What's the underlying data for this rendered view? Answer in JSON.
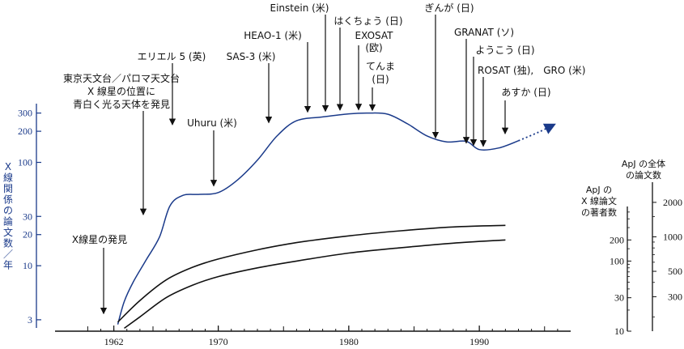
{
  "chart_data": {
    "type": "line",
    "xlim": [
      1957,
      1997
    ],
    "x_ticks": [
      1962,
      1970,
      1980,
      1990
    ],
    "x_tick_labels": [
      "1962",
      "1970",
      "1980",
      "1990"
    ],
    "left_axis": {
      "label": "X線関係の論文数／年",
      "scale": "log",
      "ylim": [
        2.5,
        370
      ],
      "ticks": [
        3,
        10,
        20,
        30,
        100,
        200,
        300
      ],
      "color": "#1a3a8a"
    },
    "right_axis_inner": {
      "label_lines": [
        "ApJ の",
        "X 線論文",
        "の著者数"
      ],
      "scale": "log",
      "ylim": [
        10,
        600
      ],
      "ticks": [
        10,
        30,
        100,
        200
      ]
    },
    "right_axis_outer": {
      "label_lines": [
        "ApJ の全体",
        "の論文数"
      ],
      "scale": "log",
      "ylim": [
        150,
        3000
      ],
      "ticks": [
        300,
        500,
        1000,
        2000
      ]
    },
    "series": [
      {
        "axis": "left",
        "color": "#1a3a8a",
        "x": [
          1962.3,
          1962.8,
          1963.5,
          1964.5,
          1965.5,
          1966.3,
          1967.3,
          1968.5,
          1970,
          1971.5,
          1973,
          1974.5,
          1976,
          1978,
          1980,
          1981.5,
          1983,
          1984.5,
          1986,
          1987.5,
          1989,
          1990,
          1991.5,
          1993,
          1994.5,
          1995.8
        ],
        "y": [
          2.7,
          4.5,
          7,
          11.5,
          19,
          38,
          48,
          49,
          51,
          68,
          105,
          180,
          253,
          275,
          295,
          300,
          292,
          236,
          180,
          158,
          160,
          133,
          138,
          162,
          195,
          234
        ]
      },
      {
        "axis": "right_outer",
        "color": "#111111",
        "x": [
          1962.3,
          1964,
          1966,
          1968,
          1970,
          1973,
          1976,
          1980,
          1984,
          1988,
          1992
        ],
        "y": [
          180,
          278,
          420,
          540,
          640,
          770,
          890,
          1020,
          1130,
          1220,
          1260
        ]
      },
      {
        "axis": "right_inner",
        "color": "#111111",
        "x": [
          1962.8,
          1964,
          1966,
          1968,
          1970,
          1973,
          1976,
          1980,
          1984,
          1988,
          1992
        ],
        "y": [
          11,
          16,
          30,
          45,
          60,
          80,
          100,
          130,
          155,
          180,
          200
        ]
      }
    ],
    "annotations": [
      {
        "lines": [
          "X線星の発見"
        ],
        "x": 1962,
        "y": 3.2
      },
      {
        "lines": [
          "東京天文台／パロマ天文台",
          "X 線星の位置に",
          "青白く光る天体を発見"
        ],
        "x": 1965,
        "y": 29
      },
      {
        "lines": [
          "エリエル 5 (英)"
        ],
        "x": 1974.5,
        "y": 215
      },
      {
        "lines": [
          "Uhuru (米)"
        ],
        "x": 1970.5,
        "y": 55
      },
      {
        "lines": [
          "SAS-3 (米)"
        ],
        "x": 1975.2,
        "y": 225
      },
      {
        "lines": [
          "HEAO-1 (米)"
        ],
        "x": 1977.8,
        "y": 285
      },
      {
        "lines": [
          "Einstein (米)"
        ],
        "x": 1979.3,
        "y": 290
      },
      {
        "lines": [
          "はくちょう (日)"
        ],
        "x": 1981.5,
        "y": 298
      },
      {
        "lines": [
          "EXOSAT",
          "(欧)"
        ],
        "x": 1982.8,
        "y": 300
      },
      {
        "lines": [
          "てんま",
          "(日)"
        ],
        "x": 1983.2,
        "y": 296
      },
      {
        "lines": [
          "ぎんが (日)"
        ],
        "x": 1987.5,
        "y": 160
      },
      {
        "lines": [
          "GRANAT (ソ)"
        ],
        "x": 1989.7,
        "y": 143
      },
      {
        "lines": [
          "ようこう (日)"
        ],
        "x": 1990.2,
        "y": 136
      },
      {
        "lines": [
          "ROSAT (独),",
          "GRO (米)"
        ],
        "x": 1990.8,
        "y": 133
      },
      {
        "lines": [
          "あすか (日)"
        ],
        "x": 1993.3,
        "y": 176
      }
    ]
  }
}
